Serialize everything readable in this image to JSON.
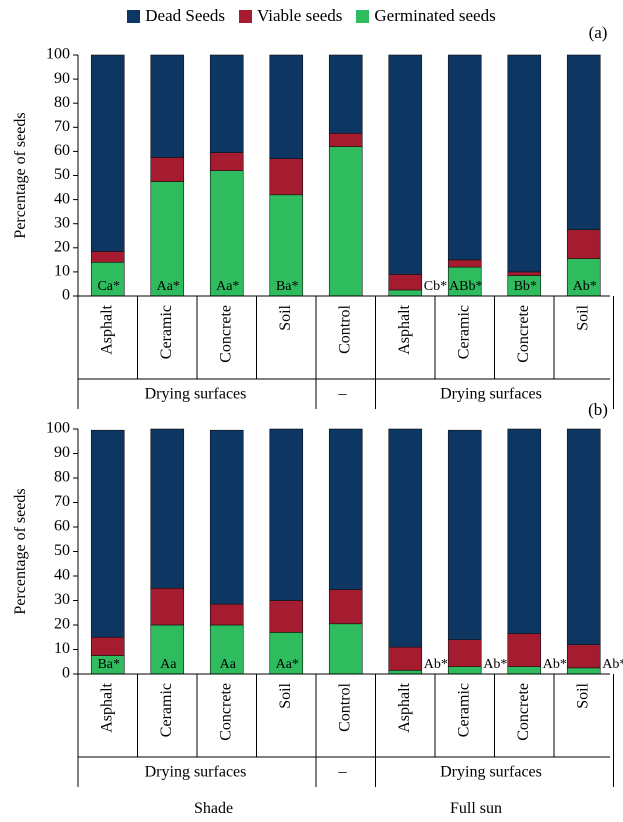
{
  "colors": {
    "dead": "#0d3762",
    "viable": "#a51c30",
    "germinated": "#2ebc5e"
  },
  "legend": [
    {
      "key": "dead",
      "label": "Dead Seeds"
    },
    {
      "key": "viable",
      "label": "Viable seeds"
    },
    {
      "key": "germinated",
      "label": "Germinated seeds"
    }
  ],
  "bottom_labels": {
    "left": "Shade",
    "right": "Full sun"
  },
  "chart_data": [
    {
      "type": "bar",
      "stacked": true,
      "panel_label": "(a)",
      "ylabel": "Percentage of seeds",
      "ylim": [
        0,
        100
      ],
      "yticks": [
        0,
        10,
        20,
        30,
        40,
        50,
        60,
        70,
        80,
        90,
        100
      ],
      "categories": [
        "Asphalt",
        "Ceramic",
        "Concrete",
        "Soil",
        "Control",
        "Asphalt",
        "Ceramic",
        "Concrete",
        "Soil"
      ],
      "group_labels": [
        "Drying surfaces",
        "–",
        "Drying surfaces"
      ],
      "series": [
        {
          "name": "Germinated seeds",
          "key": "germinated",
          "values": [
            14,
            47.5,
            52,
            42,
            62,
            2.5,
            12,
            8.5,
            15.5
          ]
        },
        {
          "name": "Viable seeds",
          "key": "viable",
          "values": [
            4.5,
            10,
            7.5,
            15,
            5.5,
            6.5,
            3,
            1.5,
            12
          ]
        },
        {
          "name": "Dead Seeds",
          "key": "dead",
          "values": [
            81.5,
            42.5,
            40.5,
            43,
            32.5,
            91,
            85,
            90,
            72.5
          ]
        }
      ],
      "annotations": [
        "Ca*",
        "Aa*",
        "Aa*",
        "Ba*",
        "",
        "Cb*",
        "ABb*",
        "Bb*",
        "Ab*"
      ]
    },
    {
      "type": "bar",
      "stacked": true,
      "panel_label": "(b)",
      "ylabel": "Percentage of seeds",
      "ylim": [
        0,
        100
      ],
      "yticks": [
        0,
        10,
        20,
        30,
        40,
        50,
        60,
        70,
        80,
        90,
        100
      ],
      "categories": [
        "Asphalt",
        "Ceramic",
        "Concrete",
        "Soil",
        "Control",
        "Asphalt",
        "Ceramic",
        "Concrete",
        "Soil"
      ],
      "group_labels": [
        "Drying surfaces",
        "–",
        "Drying surfaces"
      ],
      "series": [
        {
          "name": "Germinated seeds",
          "key": "germinated",
          "values": [
            7.5,
            20,
            20,
            17,
            20.5,
            1.5,
            3,
            3,
            2.5
          ]
        },
        {
          "name": "Viable seeds",
          "key": "viable",
          "values": [
            7.5,
            15,
            8.5,
            13,
            14,
            9.5,
            11,
            13.5,
            9.5
          ]
        },
        {
          "name": "Dead Seeds",
          "key": "dead",
          "values": [
            84.5,
            65,
            71,
            70,
            65.5,
            89,
            85.5,
            83.5,
            88
          ]
        }
      ],
      "annotations": [
        "Ba*",
        "Aa",
        "Aa",
        "Aa*",
        "",
        "Ab*",
        "Ab*",
        "Ab*",
        "Ab*"
      ]
    }
  ]
}
